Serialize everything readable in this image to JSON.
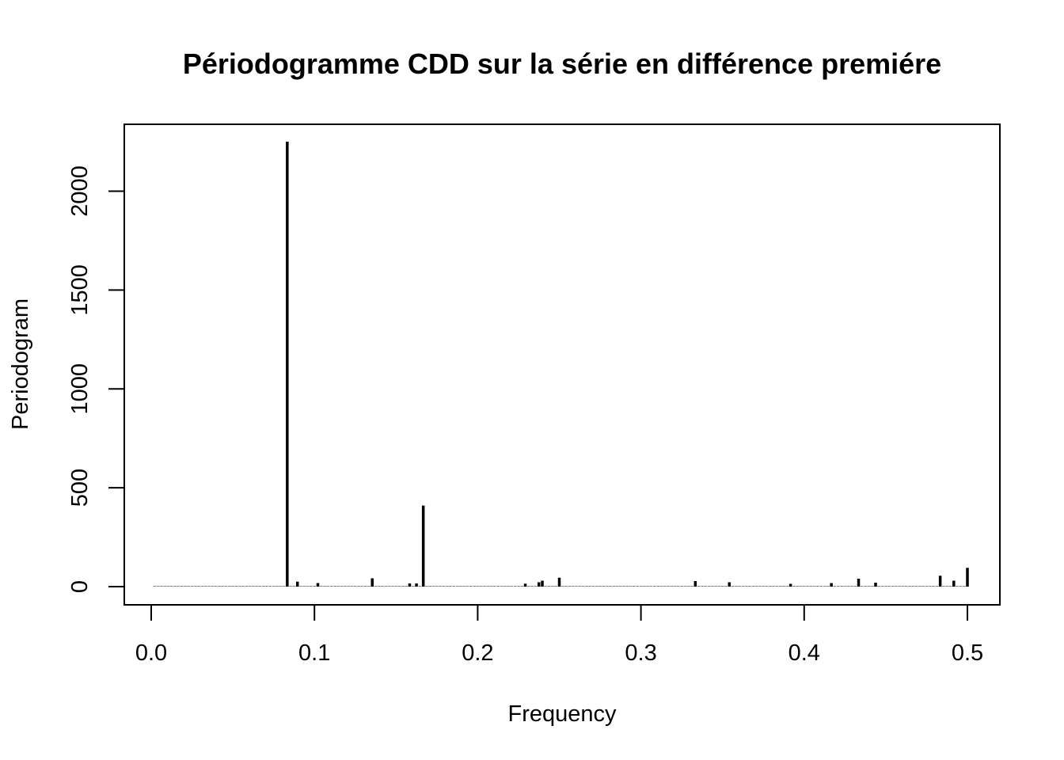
{
  "chart_data": {
    "type": "bar",
    "title": "Périodogramme CDD sur la série en différence premiére",
    "xlabel": "Frequency",
    "ylabel": "Periodogram",
    "xlim": [
      0,
      0.5
    ],
    "ylim": [
      0,
      2250
    ],
    "xticks": [
      "0.0",
      "0.1",
      "0.2",
      "0.3",
      "0.4",
      "0.5"
    ],
    "yticks": [
      "0",
      "500",
      "1000",
      "1500",
      "2000"
    ],
    "grid": false,
    "legend": "none",
    "color": "#000000",
    "n_frequencies": 240,
    "base_value": 2,
    "peaks": [
      {
        "x": 0.0833,
        "y": 2250
      },
      {
        "x": 0.1667,
        "y": 410
      },
      {
        "x": 0.5,
        "y": 95
      },
      {
        "x": 0.4833,
        "y": 55
      },
      {
        "x": 0.25,
        "y": 45
      },
      {
        "x": 0.1354,
        "y": 42
      },
      {
        "x": 0.4333,
        "y": 40
      },
      {
        "x": 0.2396,
        "y": 30
      },
      {
        "x": 0.4917,
        "y": 30
      },
      {
        "x": 0.3333,
        "y": 28
      },
      {
        "x": 0.0896,
        "y": 25
      },
      {
        "x": 0.2375,
        "y": 22
      },
      {
        "x": 0.3542,
        "y": 22
      },
      {
        "x": 0.4438,
        "y": 20
      },
      {
        "x": 0.1021,
        "y": 18
      },
      {
        "x": 0.4167,
        "y": 18
      },
      {
        "x": 0.1583,
        "y": 16
      },
      {
        "x": 0.1625,
        "y": 16
      },
      {
        "x": 0.2292,
        "y": 15
      },
      {
        "x": 0.3917,
        "y": 14
      }
    ]
  }
}
